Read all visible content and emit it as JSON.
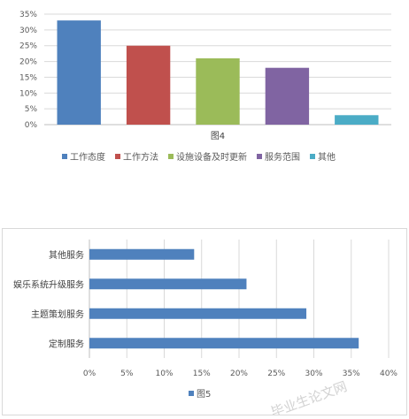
{
  "chart_data": [
    {
      "type": "bar",
      "title": "图4",
      "categories": [
        "工作态度",
        "工作方法",
        "设施设备及时更新",
        "服务范围",
        "其他"
      ],
      "values": [
        33,
        25,
        21,
        18,
        3
      ],
      "colors": [
        "#4f81bd",
        "#c0504d",
        "#9bbb59",
        "#8064a2",
        "#4bacc6"
      ],
      "ylim": [
        0,
        35
      ],
      "yticks": [
        "0%",
        "5%",
        "10%",
        "15%",
        "20%",
        "25%",
        "30%",
        "35%"
      ],
      "grid": true,
      "legend": "bottom"
    },
    {
      "type": "bar",
      "orientation": "horizontal",
      "title": "",
      "categories": [
        "其他服务",
        "娱乐系统升级服务",
        "主题策划服务",
        "定制服务"
      ],
      "series": [
        {
          "name": "图5",
          "values": [
            14,
            21,
            29,
            36
          ],
          "color": "#4f81bd"
        }
      ],
      "xlim": [
        0,
        40
      ],
      "xticks": [
        "0%",
        "5%",
        "10%",
        "15%",
        "20%",
        "25%",
        "30%",
        "35%",
        "40%"
      ],
      "grid": true,
      "legend": "bottom"
    }
  ],
  "watermark": "毕业生论文网"
}
